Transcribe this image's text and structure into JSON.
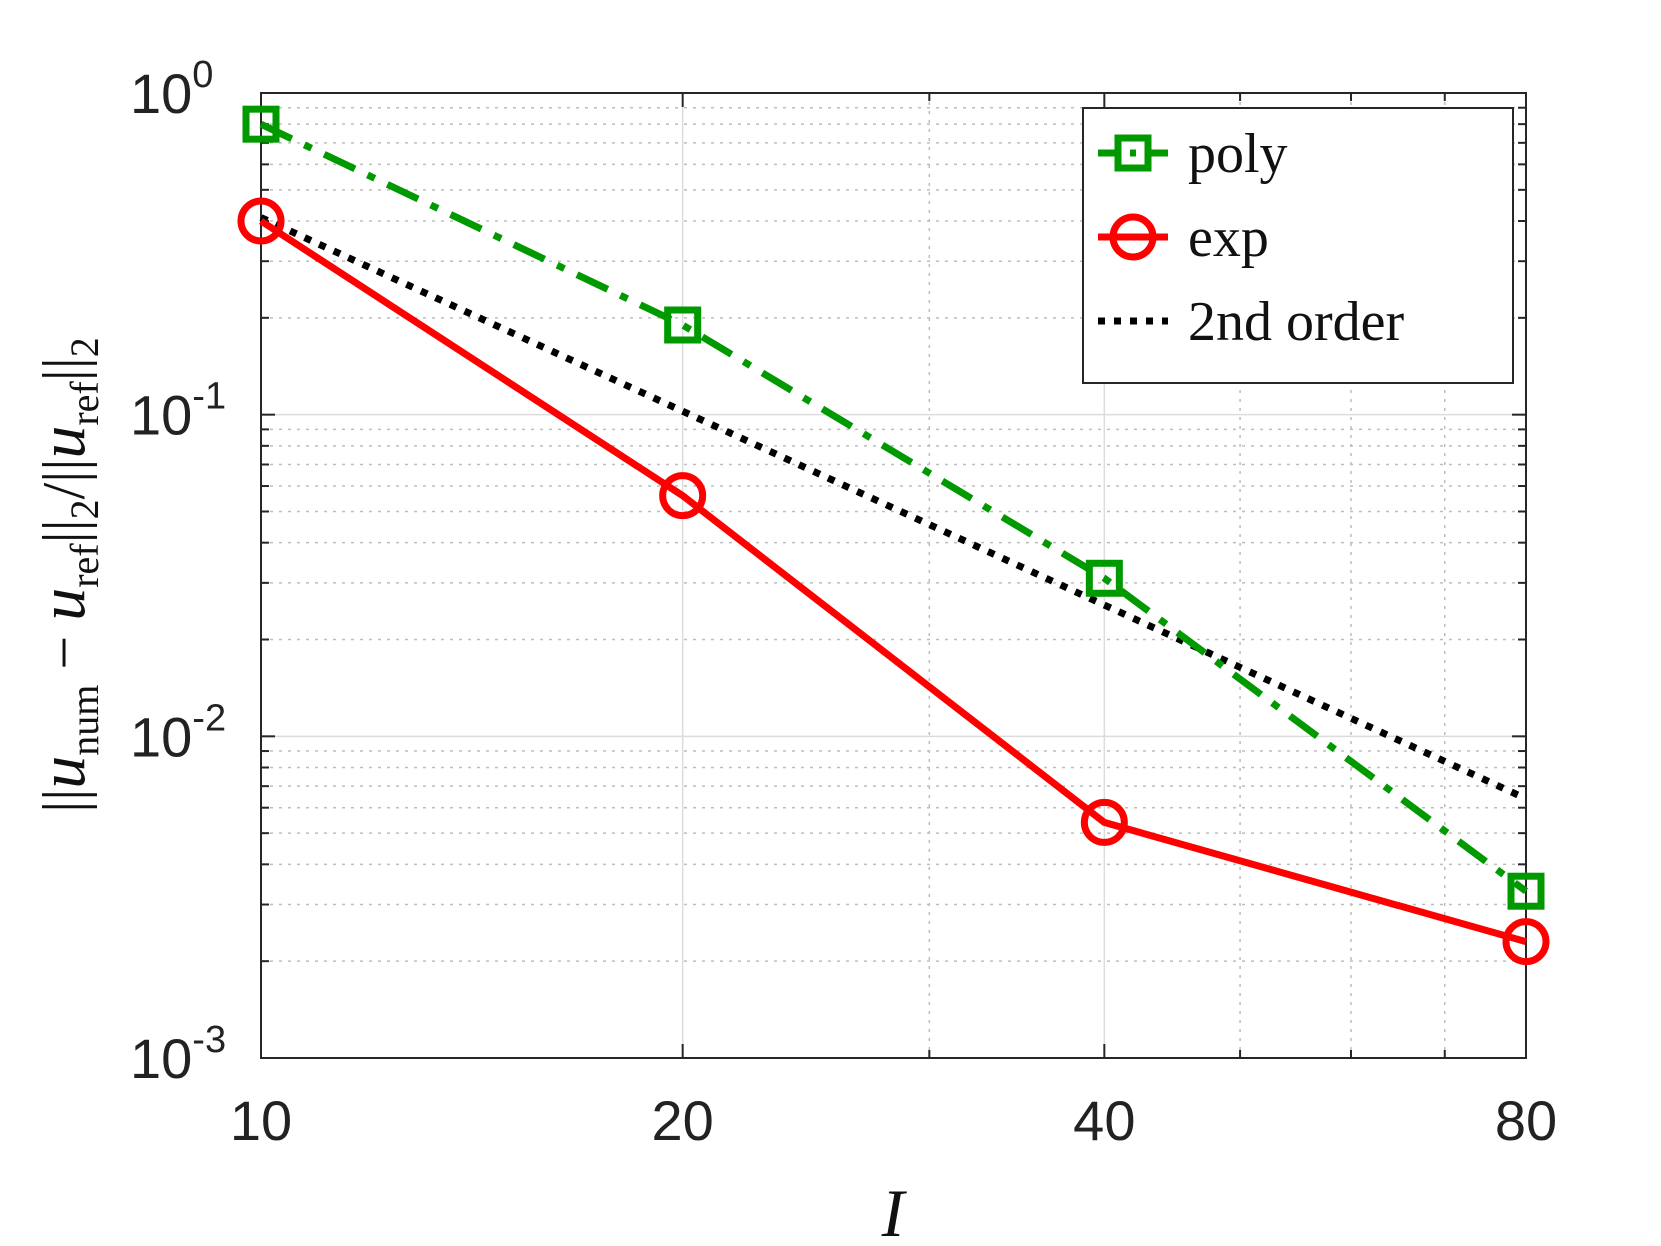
{
  "chart_data": {
    "type": "line",
    "xscale": "log",
    "yscale": "log",
    "xlim": [
      10,
      80
    ],
    "ylim": [
      0.001,
      1
    ],
    "xticks": [
      "10",
      "20",
      "40",
      "80"
    ],
    "yticks": [
      {
        "base": "10",
        "exp": "-3",
        "value": 0.001
      },
      {
        "base": "10",
        "exp": "-2",
        "value": 0.01
      },
      {
        "base": "10",
        "exp": "-1",
        "value": 0.1
      },
      {
        "base": "10",
        "exp": "0",
        "value": 1
      }
    ],
    "xlabel": "I",
    "ylabel": "||u_num − u_ref||_2 / ||u_ref||_2",
    "grid": true,
    "legend_position": "top-right",
    "series": [
      {
        "name": "poly",
        "color": "#009900",
        "marker": "square",
        "linestyle": "dash-dot",
        "x": [
          10,
          20,
          40,
          80
        ],
        "y": [
          0.8,
          0.19,
          0.031,
          0.0033
        ]
      },
      {
        "name": "exp",
        "color": "#ff0000",
        "marker": "circle",
        "linestyle": "solid",
        "x": [
          10,
          20,
          40,
          80
        ],
        "y": [
          0.4,
          0.056,
          0.0054,
          0.0023
        ]
      },
      {
        "name": "2nd order",
        "color": "#000000",
        "marker": "none",
        "linestyle": "dotted",
        "x": [
          10,
          20,
          40,
          80
        ],
        "y": [
          0.41,
          0.1025,
          0.0256,
          0.0064
        ]
      }
    ]
  }
}
